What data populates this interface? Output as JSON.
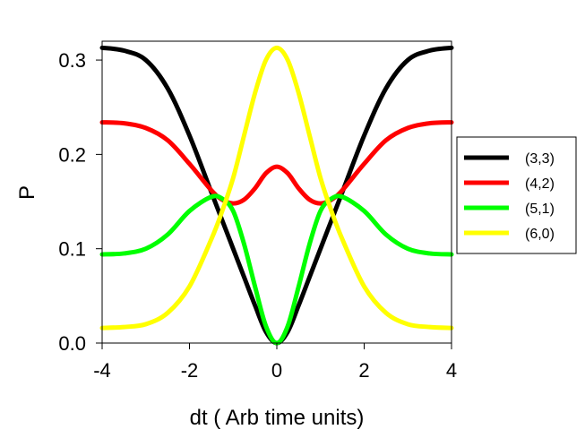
{
  "chart_data": {
    "type": "line",
    "title": "",
    "xlabel": "dt ( Arb time units)",
    "ylabel": "P",
    "xlim": [
      -4,
      4
    ],
    "ylim": [
      0,
      0.32
    ],
    "xticks": [
      -4,
      -2,
      0,
      2,
      4
    ],
    "xtick_labels": [
      "-4",
      "-2",
      "0",
      "2",
      "4"
    ],
    "yticks": [
      0,
      0.1,
      0.2,
      0.3
    ],
    "ytick_labels": [
      "0.0",
      "0.1",
      "0.2",
      "0.3"
    ],
    "grid": false,
    "legend_position": "right",
    "x": [
      -4.0,
      -3.5,
      -3.0,
      -2.5,
      -2.0,
      -1.5,
      -1.25,
      -1.0,
      -0.75,
      -0.5,
      -0.25,
      0.0,
      0.25,
      0.5,
      0.75,
      1.0,
      1.25,
      1.5,
      2.0,
      2.5,
      3.0,
      3.5,
      4.0
    ],
    "series": [
      {
        "name": "(3,3)",
        "color": "#000000",
        "values": [
          0.313,
          0.31,
          0.3,
          0.27,
          0.22,
          0.16,
          0.13,
          0.1,
          0.07,
          0.04,
          0.012,
          0.0,
          0.012,
          0.04,
          0.07,
          0.1,
          0.13,
          0.16,
          0.22,
          0.27,
          0.3,
          0.31,
          0.313
        ]
      },
      {
        "name": "(4,2)",
        "color": "#ff0000",
        "values": [
          0.234,
          0.233,
          0.228,
          0.215,
          0.19,
          0.162,
          0.152,
          0.148,
          0.152,
          0.164,
          0.18,
          0.187,
          0.18,
          0.164,
          0.152,
          0.148,
          0.152,
          0.162,
          0.19,
          0.215,
          0.228,
          0.233,
          0.234
        ]
      },
      {
        "name": "(5,1)",
        "color": "#00ff00",
        "values": [
          0.094,
          0.095,
          0.1,
          0.115,
          0.14,
          0.155,
          0.153,
          0.14,
          0.105,
          0.06,
          0.018,
          0.0,
          0.018,
          0.06,
          0.105,
          0.14,
          0.153,
          0.155,
          0.14,
          0.115,
          0.1,
          0.095,
          0.094
        ]
      },
      {
        "name": "(6,0)",
        "color": "#ffff00",
        "values": [
          0.016,
          0.017,
          0.02,
          0.032,
          0.06,
          0.11,
          0.14,
          0.175,
          0.22,
          0.265,
          0.3,
          0.313,
          0.3,
          0.265,
          0.22,
          0.175,
          0.14,
          0.11,
          0.06,
          0.032,
          0.02,
          0.017,
          0.016
        ]
      }
    ]
  }
}
